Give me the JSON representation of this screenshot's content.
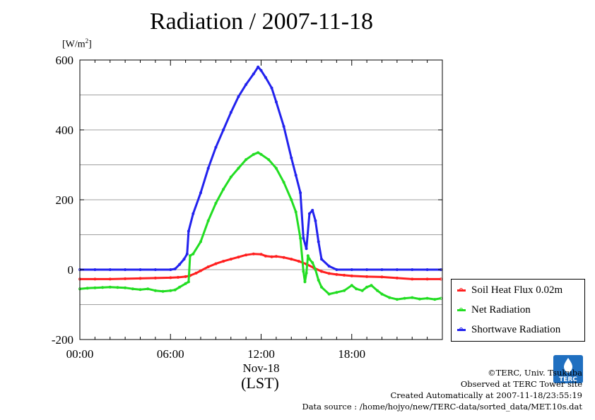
{
  "title": "Radiation / 2007-11-18",
  "y_unit": "[W/m",
  "y_unit_sup": "2",
  "y_unit_close": "]",
  "x_unit": "(LST)",
  "date_label": "Nov-18",
  "legend": {
    "items": [
      {
        "label": "Soil Heat Flux 0.02m",
        "color": "#ff2020"
      },
      {
        "label": "Net Radiation",
        "color": "#22dd22"
      },
      {
        "label": "Shortwave Radiation",
        "color": "#2222ee"
      }
    ]
  },
  "footer": {
    "copyright": "©TERC, Univ. Tsukuba",
    "observed": "Observed at TERC Tower site",
    "created": "Created Automatically at 2007-11-18/23:55:19",
    "source": "Data source : /home/hojyo/new/TERC-data/sorted_data/MET.10s.dat"
  },
  "logo_text": "TERC",
  "chart_data": {
    "type": "line",
    "title": "Radiation / 2007-11-18",
    "ylabel": "[W/m2]",
    "xlabel": "(LST)",
    "xlim": [
      0,
      24
    ],
    "ylim": [
      -200,
      600
    ],
    "yticks": [
      -200,
      0,
      200,
      400,
      600
    ],
    "yticklabels": [
      "-200",
      "0",
      "200",
      "400",
      "600"
    ],
    "xticks": [
      0,
      6,
      12,
      18
    ],
    "xticklabels": [
      "00:00",
      "06:00",
      "12:00",
      "18:00"
    ],
    "grid": true,
    "legend_position": "bottom-right outside",
    "series": [
      {
        "name": "Soil Heat Flux 0.02m",
        "color": "#ff2020",
        "points": [
          [
            0,
            -27
          ],
          [
            1,
            -27
          ],
          [
            2,
            -27
          ],
          [
            3,
            -26
          ],
          [
            4,
            -25
          ],
          [
            5,
            -24
          ],
          [
            6,
            -23
          ],
          [
            6.5,
            -22
          ],
          [
            7,
            -20
          ],
          [
            7.3,
            -17
          ],
          [
            7.7,
            -10
          ],
          [
            8,
            -3
          ],
          [
            8.5,
            8
          ],
          [
            9,
            17
          ],
          [
            9.5,
            24
          ],
          [
            10,
            30
          ],
          [
            10.5,
            36
          ],
          [
            11,
            42
          ],
          [
            11.5,
            45
          ],
          [
            12,
            44
          ],
          [
            12.3,
            39
          ],
          [
            12.7,
            37
          ],
          [
            13,
            38
          ],
          [
            13.5,
            35
          ],
          [
            14,
            30
          ],
          [
            14.5,
            24
          ],
          [
            15,
            16
          ],
          [
            15.5,
            5
          ],
          [
            16,
            -5
          ],
          [
            16.5,
            -11
          ],
          [
            17,
            -14
          ],
          [
            17.5,
            -16
          ],
          [
            18,
            -18
          ],
          [
            19,
            -20
          ],
          [
            20,
            -21
          ],
          [
            21,
            -24
          ],
          [
            22,
            -27
          ],
          [
            23,
            -27
          ],
          [
            23.9,
            -27
          ]
        ]
      },
      {
        "name": "Net Radiation",
        "color": "#22dd22",
        "points": [
          [
            0,
            -55
          ],
          [
            0.5,
            -53
          ],
          [
            1,
            -52
          ],
          [
            1.5,
            -51
          ],
          [
            2,
            -50
          ],
          [
            2.5,
            -51
          ],
          [
            3,
            -52
          ],
          [
            3.5,
            -55
          ],
          [
            4,
            -57
          ],
          [
            4.5,
            -55
          ],
          [
            5,
            -60
          ],
          [
            5.5,
            -62
          ],
          [
            6,
            -60
          ],
          [
            6.3,
            -58
          ],
          [
            6.6,
            -50
          ],
          [
            7,
            -40
          ],
          [
            7.2,
            -35
          ],
          [
            7.3,
            40
          ],
          [
            7.5,
            45
          ],
          [
            8,
            80
          ],
          [
            8.5,
            140
          ],
          [
            9,
            190
          ],
          [
            9.5,
            230
          ],
          [
            10,
            265
          ],
          [
            10.5,
            290
          ],
          [
            11,
            315
          ],
          [
            11.5,
            330
          ],
          [
            11.8,
            335
          ],
          [
            12,
            330
          ],
          [
            12.5,
            315
          ],
          [
            13,
            290
          ],
          [
            13.5,
            250
          ],
          [
            14,
            200
          ],
          [
            14.3,
            165
          ],
          [
            14.6,
            90
          ],
          [
            14.8,
            -5
          ],
          [
            14.9,
            -35
          ],
          [
            15,
            -10
          ],
          [
            15.1,
            40
          ],
          [
            15.2,
            30
          ],
          [
            15.4,
            20
          ],
          [
            15.6,
            0
          ],
          [
            15.8,
            -30
          ],
          [
            16,
            -50
          ],
          [
            16.5,
            -70
          ],
          [
            17,
            -65
          ],
          [
            17.5,
            -60
          ],
          [
            18,
            -45
          ],
          [
            18.3,
            -55
          ],
          [
            18.7,
            -60
          ],
          [
            19,
            -50
          ],
          [
            19.3,
            -45
          ],
          [
            19.7,
            -60
          ],
          [
            20,
            -70
          ],
          [
            20.5,
            -80
          ],
          [
            21,
            -85
          ],
          [
            21.5,
            -82
          ],
          [
            22,
            -80
          ],
          [
            22.5,
            -84
          ],
          [
            23,
            -82
          ],
          [
            23.5,
            -85
          ],
          [
            23.9,
            -82
          ]
        ]
      },
      {
        "name": "Shortwave Radiation",
        "color": "#2222ee",
        "points": [
          [
            0,
            0
          ],
          [
            1,
            0
          ],
          [
            2,
            0
          ],
          [
            3,
            0
          ],
          [
            4,
            0
          ],
          [
            5,
            0
          ],
          [
            6,
            0
          ],
          [
            6.3,
            2
          ],
          [
            6.6,
            15
          ],
          [
            6.9,
            30
          ],
          [
            7.1,
            45
          ],
          [
            7.2,
            110
          ],
          [
            7.5,
            160
          ],
          [
            8,
            220
          ],
          [
            8.5,
            290
          ],
          [
            9,
            350
          ],
          [
            9.5,
            400
          ],
          [
            10,
            450
          ],
          [
            10.5,
            495
          ],
          [
            11,
            530
          ],
          [
            11.5,
            560
          ],
          [
            11.8,
            580
          ],
          [
            12,
            570
          ],
          [
            12.3,
            550
          ],
          [
            12.7,
            520
          ],
          [
            13,
            480
          ],
          [
            13.5,
            410
          ],
          [
            14,
            320
          ],
          [
            14.3,
            270
          ],
          [
            14.6,
            220
          ],
          [
            14.8,
            90
          ],
          [
            15,
            60
          ],
          [
            15.2,
            160
          ],
          [
            15.4,
            170
          ],
          [
            15.6,
            140
          ],
          [
            15.8,
            80
          ],
          [
            16,
            30
          ],
          [
            16.5,
            10
          ],
          [
            17,
            0
          ],
          [
            18,
            0
          ],
          [
            19,
            0
          ],
          [
            20,
            0
          ],
          [
            21,
            0
          ],
          [
            22,
            0
          ],
          [
            23,
            0
          ],
          [
            23.9,
            0
          ]
        ]
      }
    ]
  }
}
